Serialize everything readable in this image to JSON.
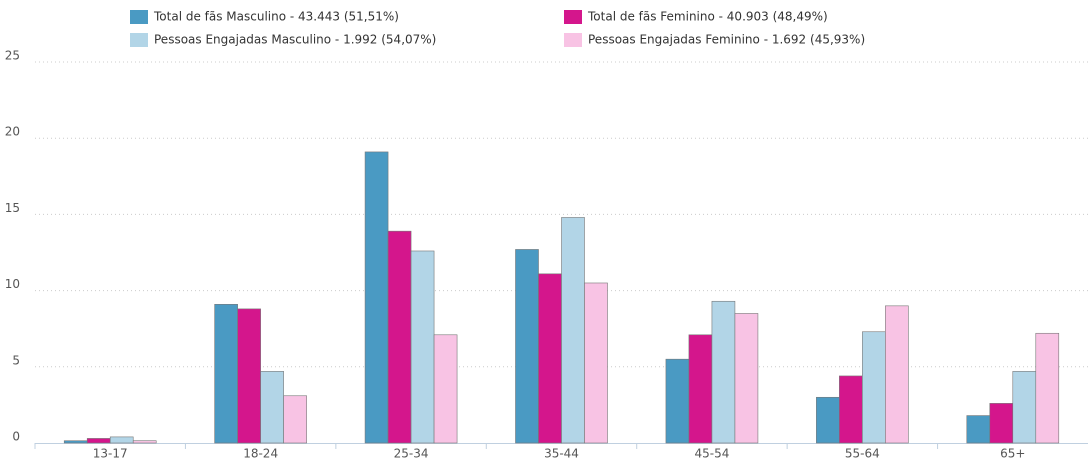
{
  "chart_data": {
    "type": "bar",
    "categories": [
      "13-17",
      "18-24",
      "25-34",
      "35-44",
      "45-54",
      "55-64",
      "65+"
    ],
    "series": [
      {
        "name": "Total de fãs Masculino - 43.443 (51,51%)",
        "color": "#4a9ac3",
        "values": [
          0.15,
          9.1,
          19.1,
          12.7,
          5.5,
          3.0,
          1.8
        ]
      },
      {
        "name": "Total de fãs Feminino - 40.903 (48,49%)",
        "color": "#d4168c",
        "values": [
          0.3,
          8.8,
          13.9,
          11.1,
          7.1,
          4.4,
          2.6
        ]
      },
      {
        "name": "Pessoas Engajadas Masculino - 1.992 (54,07%)",
        "color": "#b2d5e7",
        "values": [
          0.4,
          4.7,
          12.6,
          14.8,
          9.3,
          7.3,
          4.7
        ]
      },
      {
        "name": "Pessoas Engajadas Feminino - 1.692 (45,93%)",
        "color": "#f8c3e4",
        "values": [
          0.15,
          3.1,
          7.1,
          10.5,
          8.5,
          9.0,
          7.2
        ]
      }
    ],
    "ylim": [
      0,
      25
    ],
    "yticks": [
      0,
      5,
      10,
      15,
      20,
      25
    ],
    "grid": true,
    "legend": "top"
  }
}
